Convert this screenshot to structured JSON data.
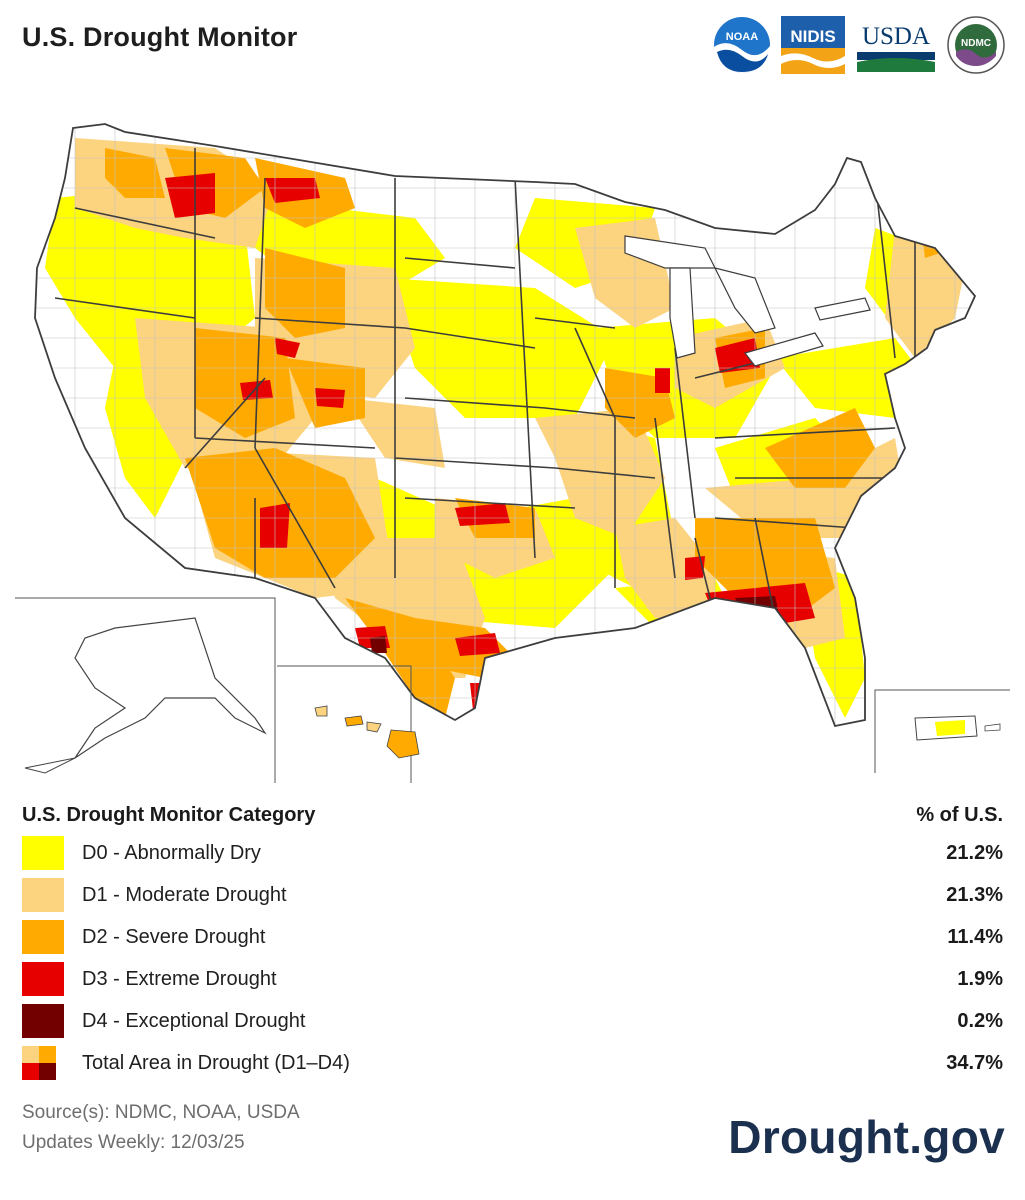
{
  "header": {
    "title": "U.S. Drought Monitor",
    "logos": [
      {
        "icon": "noaa-logo",
        "text": "NOAA"
      },
      {
        "icon": "nidis-logo",
        "text": "NIDIS"
      },
      {
        "icon": "usda-logo",
        "text": "USDA"
      },
      {
        "icon": "ndmc-logo",
        "text": "NDMC"
      }
    ]
  },
  "colors": {
    "d0": "#ffff00",
    "d1": "#fcd37f",
    "d2": "#ffaa00",
    "d3": "#e60000",
    "d4": "#730000",
    "none": "#ffffff",
    "border": "#444444",
    "county": "#bbbbbb",
    "brand": "#1b2f4e"
  },
  "legend": {
    "heading": "U.S. Drought Monitor Category",
    "value_heading": "% of U.S.",
    "rows": [
      {
        "key": "d0",
        "label": "D0 - Abnormally Dry",
        "percent": "21.2%"
      },
      {
        "key": "d1",
        "label": "D1 - Moderate Drought",
        "percent": "21.3%"
      },
      {
        "key": "d2",
        "label": "D2 - Severe Drought",
        "percent": "11.4%"
      },
      {
        "key": "d3",
        "label": "D3 - Extreme Drought",
        "percent": "1.9%"
      },
      {
        "key": "d4",
        "label": "D4 - Exceptional Drought",
        "percent": "0.2%"
      }
    ],
    "total": {
      "label": "Total Area in Drought (D1–D4)",
      "percent": "34.7%"
    }
  },
  "footer": {
    "source": "Source(s): NDMC, NOAA, USDA",
    "updated": "Updates Weekly: 12/03/25",
    "site": "Drought.gov"
  }
}
